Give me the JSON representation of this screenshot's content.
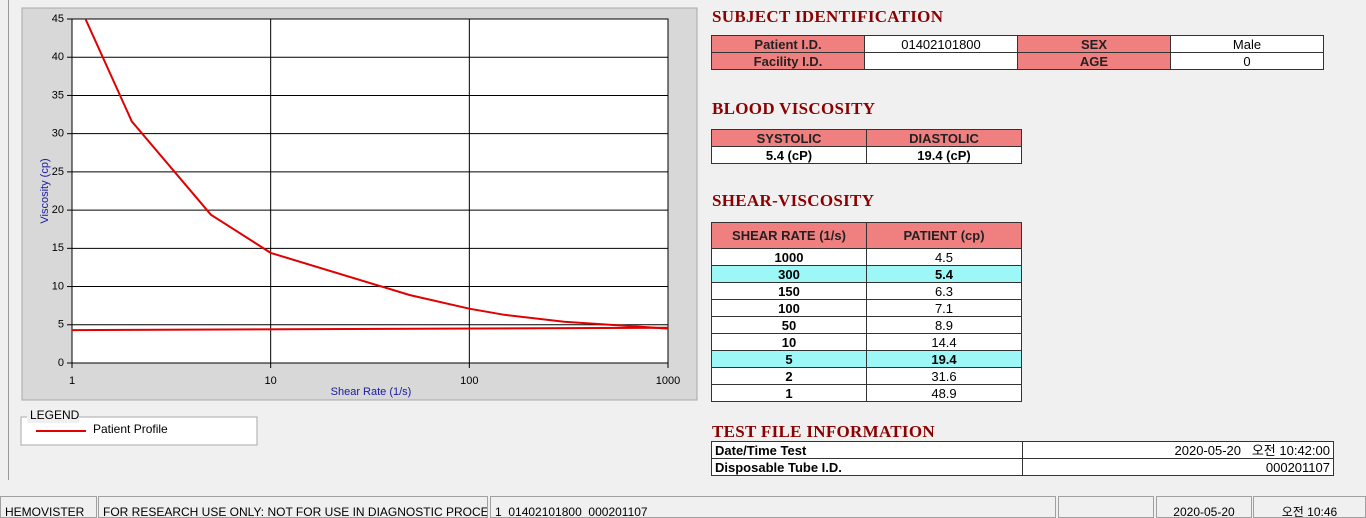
{
  "chart_data": {
    "type": "line",
    "xlabel": "Shear Rate (1/s)",
    "ylabel": "Viscosity (cp)",
    "xscale": "log",
    "xlim": [
      1,
      1000
    ],
    "xticks": [
      1,
      10,
      100,
      1000
    ],
    "ylim": [
      0,
      45
    ],
    "yticks": [
      0,
      5,
      10,
      15,
      20,
      25,
      30,
      35,
      40,
      45
    ],
    "grid": true,
    "legend_title": "LEGEND",
    "series": [
      {
        "name": "Patient Profile",
        "color": "#e00000",
        "x": [
          1,
          2,
          5,
          10,
          50,
          100,
          150,
          300,
          1000
        ],
        "values": [
          48.9,
          31.6,
          19.4,
          14.4,
          8.9,
          7.1,
          6.3,
          5.4,
          4.5
        ]
      },
      {
        "color": "#e00000",
        "x": [
          1,
          1000
        ],
        "values": [
          4.3,
          4.6
        ]
      }
    ]
  },
  "subject": {
    "title": "SUBJECT IDENTIFICATION",
    "rows": [
      [
        {
          "label": "Patient I.D.",
          "value": "01402101800"
        },
        {
          "label": "SEX",
          "value": "Male"
        }
      ],
      [
        {
          "label": "Facility I.D."
        },
        {
          "label": "AGE",
          "value": "0"
        }
      ]
    ]
  },
  "blood": {
    "title": "BLOOD VISCOSITY",
    "headers": [
      "SYSTOLIC",
      "DIASTOLIC"
    ],
    "values": [
      "5.4 (cP)",
      "19.4 (cP)"
    ]
  },
  "shear": {
    "title": "SHEAR-VISCOSITY",
    "headers": [
      "SHEAR RATE (1/s)",
      "PATIENT (cp)"
    ],
    "rows": [
      {
        "cells": [
          "1000",
          "4.5"
        ]
      },
      {
        "cells": [
          "300",
          "5.4"
        ],
        "highlight": true
      },
      {
        "cells": [
          "150",
          "6.3"
        ]
      },
      {
        "cells": [
          "100",
          "7.1"
        ]
      },
      {
        "cells": [
          "50",
          "8.9"
        ]
      },
      {
        "cells": [
          "10",
          "14.4"
        ]
      },
      {
        "cells": [
          "5",
          "19.4"
        ],
        "highlight": true
      },
      {
        "cells": [
          "2",
          "31.6"
        ]
      },
      {
        "cells": [
          "1",
          "48.9"
        ]
      }
    ]
  },
  "test_file": {
    "title": "TEST FILE INFORMATION",
    "rows": [
      [
        "Date/Time Test",
        "2020-05-20   오전 10:42:00"
      ],
      [
        "Disposable Tube I.D.",
        "000201107"
      ]
    ]
  },
  "status_bar": [
    "HEMOVISTER",
    "FOR RESEARCH USE ONLY: NOT FOR USE IN DIAGNOSTIC PROCEDURES",
    "1  01402101800  000201107",
    "2020-05-20",
    "오전 10:46"
  ]
}
